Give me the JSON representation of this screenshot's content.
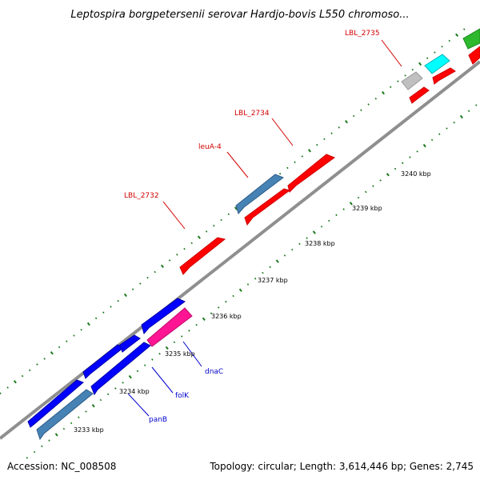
{
  "title": "Leptospira borgpetersenii serovar Hardjo-bovis L550 chromoso...",
  "accession": "Accession: NC_008508",
  "summary": "Topology: circular; Length: 3,614,446 bp; Genes: 2,745",
  "kbp_ticks": [
    "3233 kbp",
    "3234 kbp",
    "3235 kbp",
    "3236 kbp",
    "3237 kbp",
    "3238 kbp",
    "3239 kbp",
    "3240 kbp"
  ],
  "gene_labels": [
    "panB",
    "folK",
    "dnaC",
    "LBL_2732",
    "leuA-4",
    "LBL_2734",
    "LBL_2735"
  ],
  "colors": {
    "backbone": "#999999",
    "forward_red": "#ff0000",
    "steelblue": "#4682b4",
    "blue": "#0000ff",
    "magenta": "#ff1493",
    "grey_gene": "#c0c0c0",
    "cyan": "#00ffff",
    "green": "#2db82d",
    "label_red": "#d40000",
    "label_blue": "#0000cc",
    "tick_green": "#006400"
  }
}
